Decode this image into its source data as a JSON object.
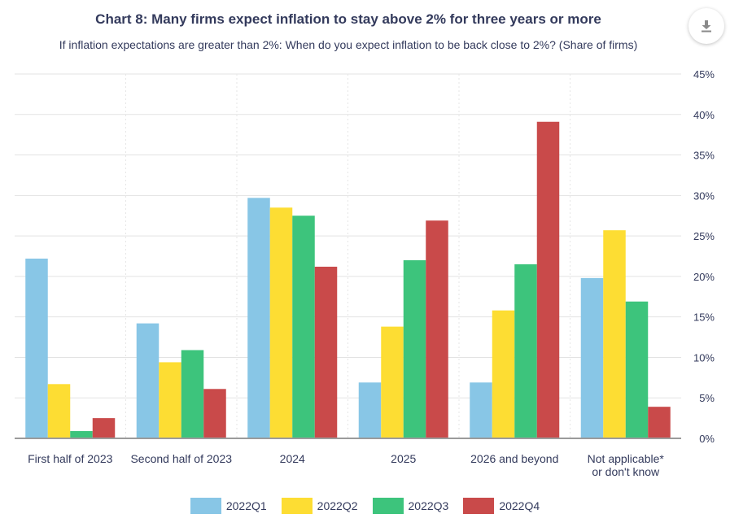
{
  "header": {
    "title": "Chart 8: Many firms expect inflation to stay above 2% for three years or more",
    "subtitle": "If inflation expectations are greater than 2%: When do you expect inflation to be back close to 2%? (Share of firms)"
  },
  "export_icon": "download-icon",
  "chart_data": {
    "type": "bar",
    "categories": [
      "First half of 2023",
      "Second half of 2023",
      "2024",
      "2025",
      "2026 and beyond",
      "Not applicable*\nor don't know"
    ],
    "series": [
      {
        "name": "2022Q1",
        "color": "#88c6e6",
        "values": [
          22.2,
          14.2,
          29.7,
          6.9,
          6.9,
          19.8
        ]
      },
      {
        "name": "2022Q2",
        "color": "#fddd33",
        "values": [
          6.7,
          9.4,
          28.5,
          13.8,
          15.8,
          25.7
        ]
      },
      {
        "name": "2022Q3",
        "color": "#3dc47c",
        "values": [
          0.9,
          10.9,
          27.5,
          22.0,
          21.5,
          16.9
        ]
      },
      {
        "name": "2022Q4",
        "color": "#c94a4a",
        "values": [
          2.5,
          6.1,
          21.2,
          26.9,
          39.1,
          3.9
        ]
      }
    ],
    "y_ticks": [
      "0%",
      "5%",
      "10%",
      "15%",
      "20%",
      "25%",
      "30%",
      "35%",
      "40%",
      "45%"
    ],
    "ylim": [
      0,
      45
    ],
    "y_axis_side": "right",
    "grid": true,
    "legend": "bottom-center"
  }
}
